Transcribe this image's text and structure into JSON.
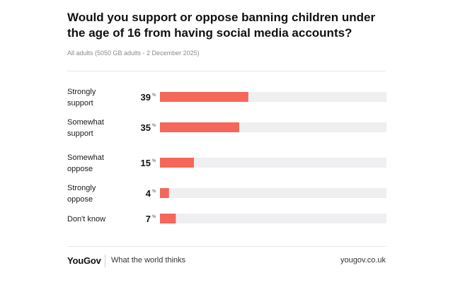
{
  "header": {
    "title": "Would you support or oppose banning children under the age of 16 from having social media accounts?",
    "subtitle": "All adults (5050 GB adults - 2 December 2025)"
  },
  "chart_data": {
    "type": "bar",
    "orientation": "horizontal",
    "categories": [
      "Strongly support",
      "Somewhat support",
      "Somewhat oppose",
      "Strongly oppose",
      "Don't know"
    ],
    "values": [
      39,
      35,
      15,
      4,
      7
    ],
    "unit": "%",
    "xlim": [
      0,
      100
    ],
    "grid": false,
    "colors": {
      "bar": "#f4675a",
      "track": "#efeff1"
    }
  },
  "footer": {
    "brand": "YouGov",
    "tagline": "What the world thinks",
    "site": "yougov.co.uk"
  }
}
